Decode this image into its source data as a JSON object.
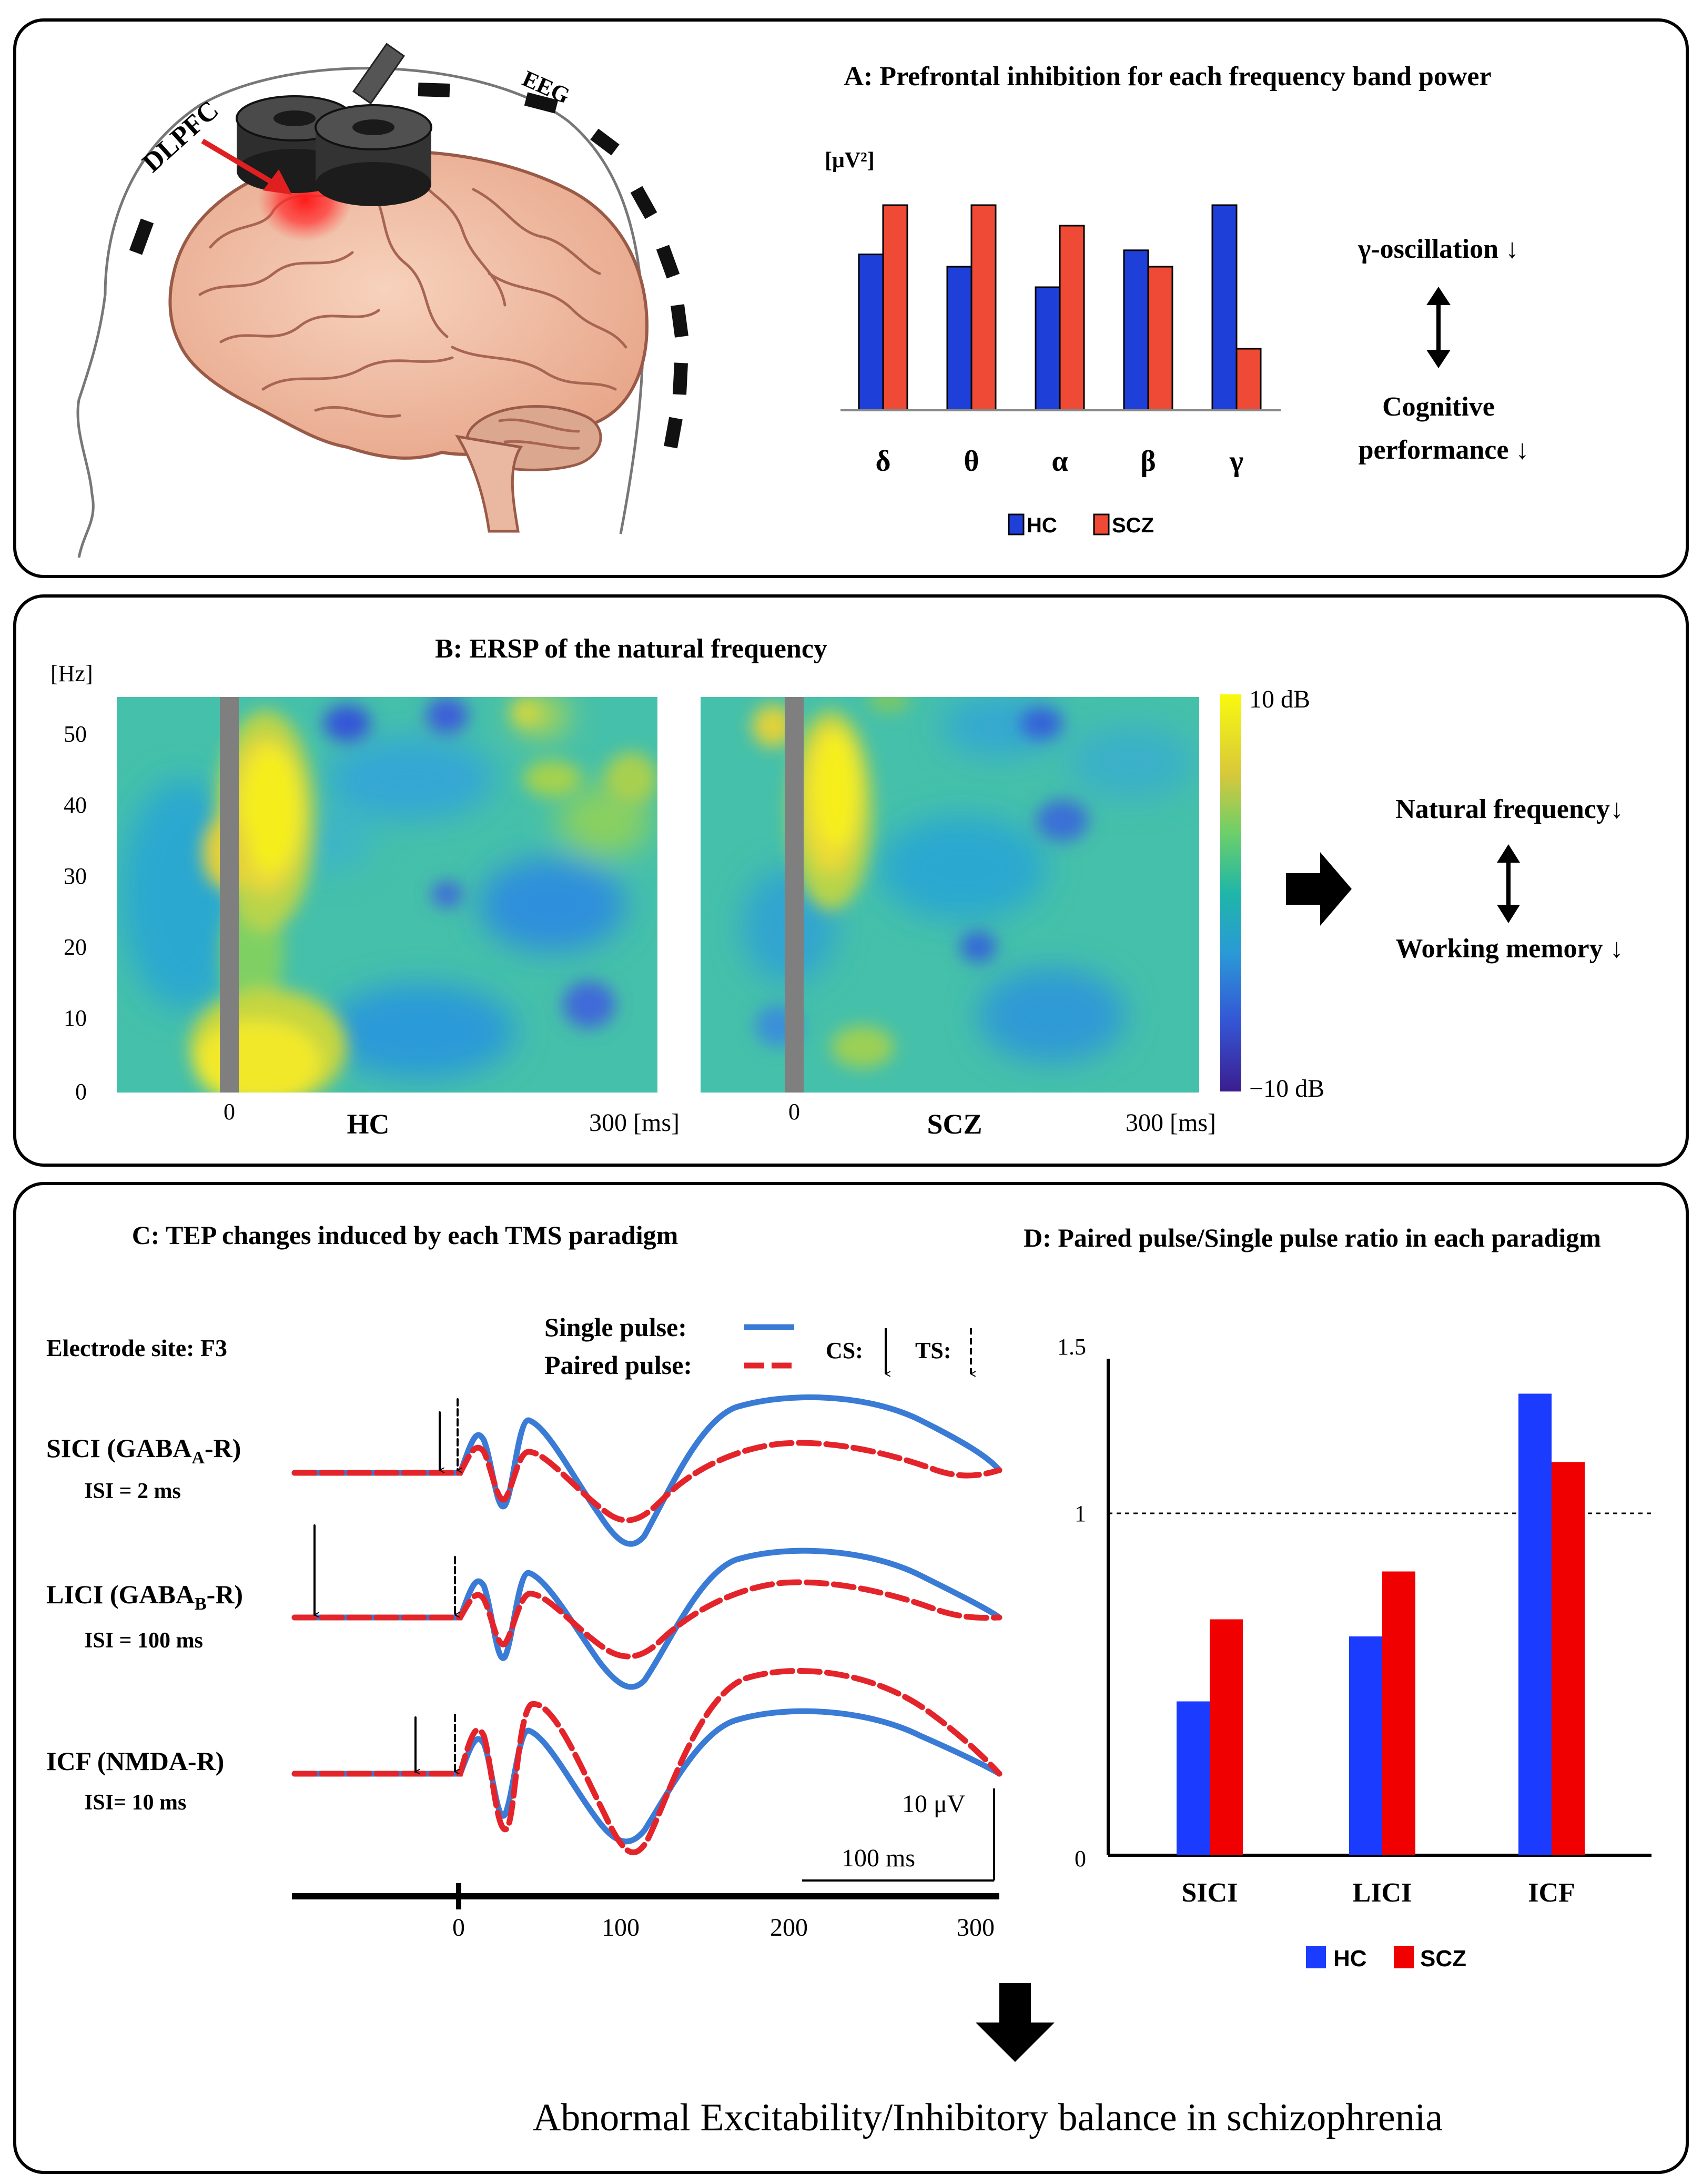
{
  "colors": {
    "hc": "#1f3fd9",
    "scz": "#ee4a35",
    "single": "#3a7bd5",
    "paired": "#e3252b",
    "scz_d": "#f00000",
    "hc_d": "#1b3cff"
  },
  "panel_a": {
    "title": "A: Prefrontal inhibition for each frequency band power",
    "eeg_label": "EEG",
    "dlpfc_label": "DLPFC",
    "unit": "[μV²]",
    "side_top": "γ-oscillation ↓",
    "side_bottom_1": "Cognitive",
    "side_bottom_2": "performance ↓",
    "legend": [
      "HC",
      "SCZ"
    ],
    "chart_data": {
      "type": "bar",
      "categories": [
        "δ",
        "θ",
        "α",
        "β",
        "γ"
      ],
      "series": [
        {
          "name": "HC",
          "values": [
            0.76,
            0.7,
            0.6,
            0.78,
            1.0
          ]
        },
        {
          "name": "SCZ",
          "values": [
            1.0,
            1.0,
            0.9,
            0.7,
            0.3
          ]
        }
      ],
      "ylabel": "[μV²]",
      "ylim": [
        0,
        1.05
      ]
    }
  },
  "panel_b": {
    "title": "B: ERSP of the natural frequency",
    "y_unit": "[Hz]",
    "y_ticks": [
      "50",
      "40",
      "30",
      "20",
      "10",
      "0"
    ],
    "zero_label": "0",
    "end_label": "300 [ms]",
    "hc_label": "HC",
    "scz_label": "SCZ",
    "cbar_max": "10 dB",
    "cbar_min": "−10 dB",
    "side_top": "Natural frequency↓",
    "side_bottom": "Working memory ↓",
    "chart_data": {
      "type": "heatmap",
      "panels": [
        "HC",
        "SCZ"
      ],
      "x_range_ms": [
        -60,
        300
      ],
      "y_range_hz": [
        0,
        55
      ],
      "color_range_db": [
        -10,
        10
      ]
    }
  },
  "panel_c": {
    "title": "C: TEP changes induced by each TMS paradigm",
    "electrode": "Electrode site: F3",
    "legend_single": "Single pulse:",
    "legend_paired": "Paired pulse:",
    "cs_label": "CS:",
    "ts_label": "TS:",
    "rows": [
      {
        "name": "SICI (GABA",
        "sub": "A",
        "tail": "-R)",
        "isi": "ISI = 2 ms"
      },
      {
        "name": "LICI (GABA",
        "sub": "B",
        "tail": "-R)",
        "isi": "ISI = 100 ms"
      },
      {
        "name": "ICF (NMDA-R)",
        "sub": "",
        "tail": "",
        "isi": "ISI= 10 ms"
      }
    ],
    "scale_uv": "10 μV",
    "scale_ms": "100 ms",
    "x_ticks": [
      "0",
      "100",
      "200",
      "300"
    ]
  },
  "panel_d": {
    "title": "D: Paired pulse/Single pulse ratio in each paradigm",
    "y_ticks": [
      "1.5",
      "1",
      "0"
    ],
    "legend": [
      "HC",
      "SCZ"
    ],
    "chart_data": {
      "type": "bar",
      "categories": [
        "SICI",
        "LICI",
        "ICF"
      ],
      "series": [
        {
          "name": "HC",
          "values": [
            0.45,
            0.64,
            1.35
          ]
        },
        {
          "name": "SCZ",
          "values": [
            0.69,
            0.83,
            1.15
          ]
        }
      ],
      "ylim": [
        0,
        1.5
      ],
      "reference_line": 1
    }
  },
  "conclusion": "Abnormal Excitability/Inhibitory balance in schizophrenia"
}
